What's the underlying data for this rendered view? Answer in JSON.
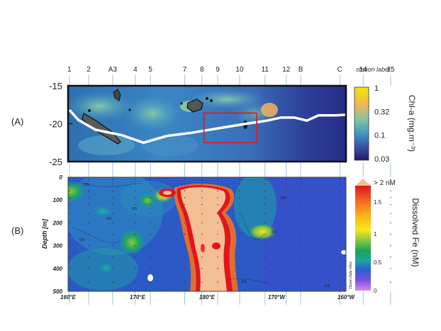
{
  "panel_labels": [
    "(A)",
    "(B)"
  ],
  "stations": [
    {
      "label": "1",
      "lon": 160.2
    },
    {
      "label": "2",
      "lon": 163.0
    },
    {
      "label": "A3",
      "lon": 166.5
    },
    {
      "label": "4",
      "lon": 169.8
    },
    {
      "label": "5",
      "lon": 172.0
    },
    {
      "label": "7",
      "lon": 177.0
    },
    {
      "label": "8",
      "lon": 179.5
    },
    {
      "label": "9",
      "lon": 181.8
    },
    {
      "label": "10",
      "lon": 185.0
    },
    {
      "label": "11",
      "lon": 188.7
    },
    {
      "label": "12",
      "lon": 191.8
    },
    {
      "label": "B",
      "lon": 193.9
    },
    {
      "label": "C",
      "lon": 199.6
    },
    {
      "label": "14",
      "lon": 203.0
    },
    {
      "label": "15",
      "lon": 207.0
    }
  ],
  "station_axis_title": "station label",
  "chart_data": [
    {
      "type": "heatmap",
      "panel": "(A)",
      "description": "Chl-a map with ship track",
      "ylim": [
        -25,
        -15
      ],
      "yticks": [
        "-15",
        "-20",
        "-25"
      ],
      "colorbar": {
        "label": "Chl-a (mg.m⁻³)",
        "ticks": [
          "1",
          "0.32",
          "0.1",
          "0.03"
        ],
        "colors": [
          "#f3e300",
          "#f2b45d",
          "#7cc2a3",
          "#3f8fc0",
          "#3c4aa2",
          "#241b66"
        ]
      },
      "highlight_box": {
        "lon": [
          179.8,
          187.5
        ],
        "lat": [
          -22.5,
          -18.6
        ],
        "color": "#d81f26"
      },
      "track": [
        [
          160.2,
          -18.2
        ],
        [
          161.5,
          -19.5
        ],
        [
          164.0,
          -20.8
        ],
        [
          167.8,
          -21.5
        ],
        [
          171.0,
          -22.5
        ],
        [
          174.5,
          -21.6
        ],
        [
          178.0,
          -21.2
        ],
        [
          182.0,
          -20.6
        ],
        [
          186.0,
          -20.0
        ],
        [
          189.0,
          -19.6
        ],
        [
          191.0,
          -19.2
        ],
        [
          193.0,
          -19.2
        ],
        [
          194.8,
          -19.6
        ],
        [
          196.5,
          -18.9
        ],
        [
          199.0,
          -18.9
        ],
        [
          203.0,
          -18.7
        ],
        [
          207.0,
          -18.5
        ]
      ]
    },
    {
      "type": "heatmap",
      "panel": "(B)",
      "description": "Dissolved Fe depth section",
      "x_range": [
        160,
        200
      ],
      "xticks": [
        "160°E",
        "170°E",
        "180°E",
        "170°W",
        "160°W"
      ],
      "ylabel": "Depth [m]",
      "ylim": [
        0,
        500
      ],
      "yticks": [
        "0",
        "100",
        "200",
        "300",
        "400",
        "500"
      ],
      "contour_labels": [
        "0.5",
        "0.5",
        "0.5",
        "0.5",
        "0.5",
        "0.5",
        "0.5",
        "0.5"
      ],
      "watermark": "Ocean Data View",
      "colorbar": {
        "label": "Dissolved Fe (nM)",
        "top_label": "> 2 nM",
        "ticks": [
          "1.5",
          "1",
          "0.5",
          "0"
        ],
        "colors": [
          "#f4bf95",
          "#e2101a",
          "#f37021",
          "#fbd30a",
          "#8ec63f",
          "#19a65a",
          "#2b59c5",
          "#7a4ee0",
          "#c57fe6"
        ]
      }
    }
  ]
}
